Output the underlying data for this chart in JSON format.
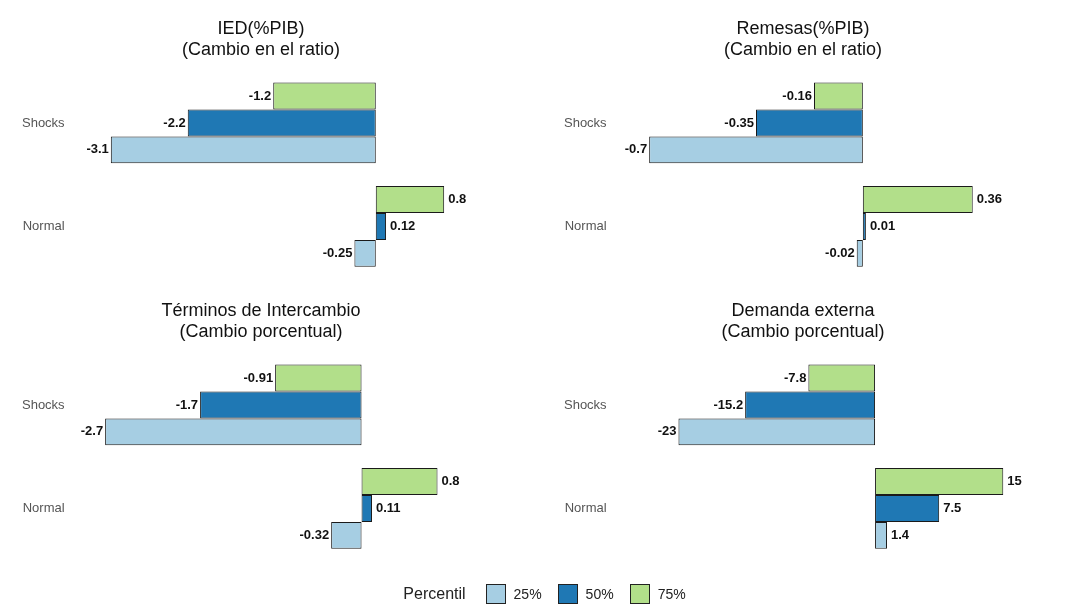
{
  "chart_data": [
    {
      "type": "bar",
      "orientation": "horizontal",
      "title": "IED(%PIB)",
      "subtitle": "(Cambio en el ratio)",
      "categories": [
        "Shocks",
        "Normal"
      ],
      "tick_labels": "y",
      "grid": false,
      "legend": "bottom",
      "legend_title": "Percentil",
      "data_labels": true,
      "series": [
        {
          "name": "25%",
          "color": "#a6cee3",
          "values": [
            -3.1,
            -0.25
          ]
        },
        {
          "name": "50%",
          "color": "#1f78b4",
          "values": [
            -2.2,
            0.12
          ]
        },
        {
          "name": "75%",
          "color": "#b2df8a",
          "values": [
            -1.2,
            0.8
          ]
        }
      ]
    },
    {
      "type": "bar",
      "orientation": "horizontal",
      "title": "Remesas(%PIB)",
      "subtitle": "(Cambio en el ratio)",
      "categories": [
        "Shocks",
        "Normal"
      ],
      "tick_labels": "y",
      "grid": false,
      "data_labels": true,
      "series": [
        {
          "color": "#a6cee3",
          "values": [
            -0.7,
            -0.02
          ]
        },
        {
          "color": "#1f78b4",
          "values": [
            -0.35,
            0.01
          ]
        },
        {
          "color": "#b2df8a",
          "values": [
            -0.16,
            0.36
          ]
        }
      ]
    },
    {
      "type": "bar",
      "orientation": "horizontal",
      "title": "Términos de Intercambio",
      "subtitle": "(Cambio porcentual)",
      "categories": [
        "Shocks",
        "Normal"
      ],
      "tick_labels": "y",
      "grid": false,
      "data_labels": true,
      "series": [
        {
          "color": "#a6cee3",
          "values": [
            -2.7,
            -0.32
          ]
        },
        {
          "color": "#1f78b4",
          "values": [
            -1.7,
            0.11
          ]
        },
        {
          "color": "#b2df8a",
          "values": [
            -0.91,
            0.8
          ]
        }
      ]
    },
    {
      "type": "bar",
      "orientation": "horizontal",
      "title": "Demanda externa",
      "subtitle": "(Cambio porcentual)",
      "categories": [
        "Shocks",
        "Normal"
      ],
      "tick_labels": "y",
      "grid": false,
      "data_labels": true,
      "series": [
        {
          "color": "#a6cee3",
          "values": [
            -23,
            1.4
          ]
        },
        {
          "color": "#1f78b4",
          "values": [
            -15.2,
            7.5
          ]
        },
        {
          "color": "#b2df8a",
          "values": [
            -7.8,
            15
          ]
        }
      ]
    }
  ]
}
